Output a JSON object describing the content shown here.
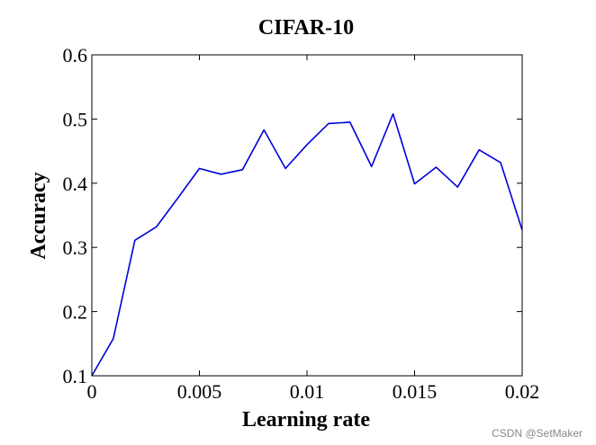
{
  "chart_data": {
    "type": "line",
    "title": "CIFAR-10",
    "xlabel": "Learning rate",
    "ylabel": "Accuracy",
    "xlim": [
      0,
      0.02
    ],
    "ylim": [
      0.1,
      0.6
    ],
    "grid": false,
    "x_ticks": [
      "0",
      "0.005",
      "0.01",
      "0.015",
      "0.02"
    ],
    "x_tick_values": [
      0,
      0.005,
      0.01,
      0.015,
      0.02
    ],
    "y_ticks": [
      "0.1",
      "0.2",
      "0.3",
      "0.4",
      "0.5",
      "0.6"
    ],
    "y_tick_values": [
      0.1,
      0.2,
      0.3,
      0.4,
      0.5,
      0.6
    ],
    "series": [
      {
        "color": "#0000d8",
        "x": [
          0,
          0.001,
          0.002,
          0.003,
          0.004,
          0.005,
          0.006,
          0.007,
          0.008,
          0.009,
          0.01,
          0.011,
          0.012,
          0.013,
          0.014,
          0.015,
          0.016,
          0.017,
          0.018,
          0.019,
          0.02
        ],
        "y": [
          0.1,
          0.158,
          0.311,
          0.332,
          0.377,
          0.423,
          0.414,
          0.421,
          0.483,
          0.423,
          0.46,
          0.493,
          0.495,
          0.426,
          0.508,
          0.399,
          0.425,
          0.394,
          0.452,
          0.432,
          0.327
        ]
      }
    ]
  },
  "watermark": "CSDN @SetMaker"
}
